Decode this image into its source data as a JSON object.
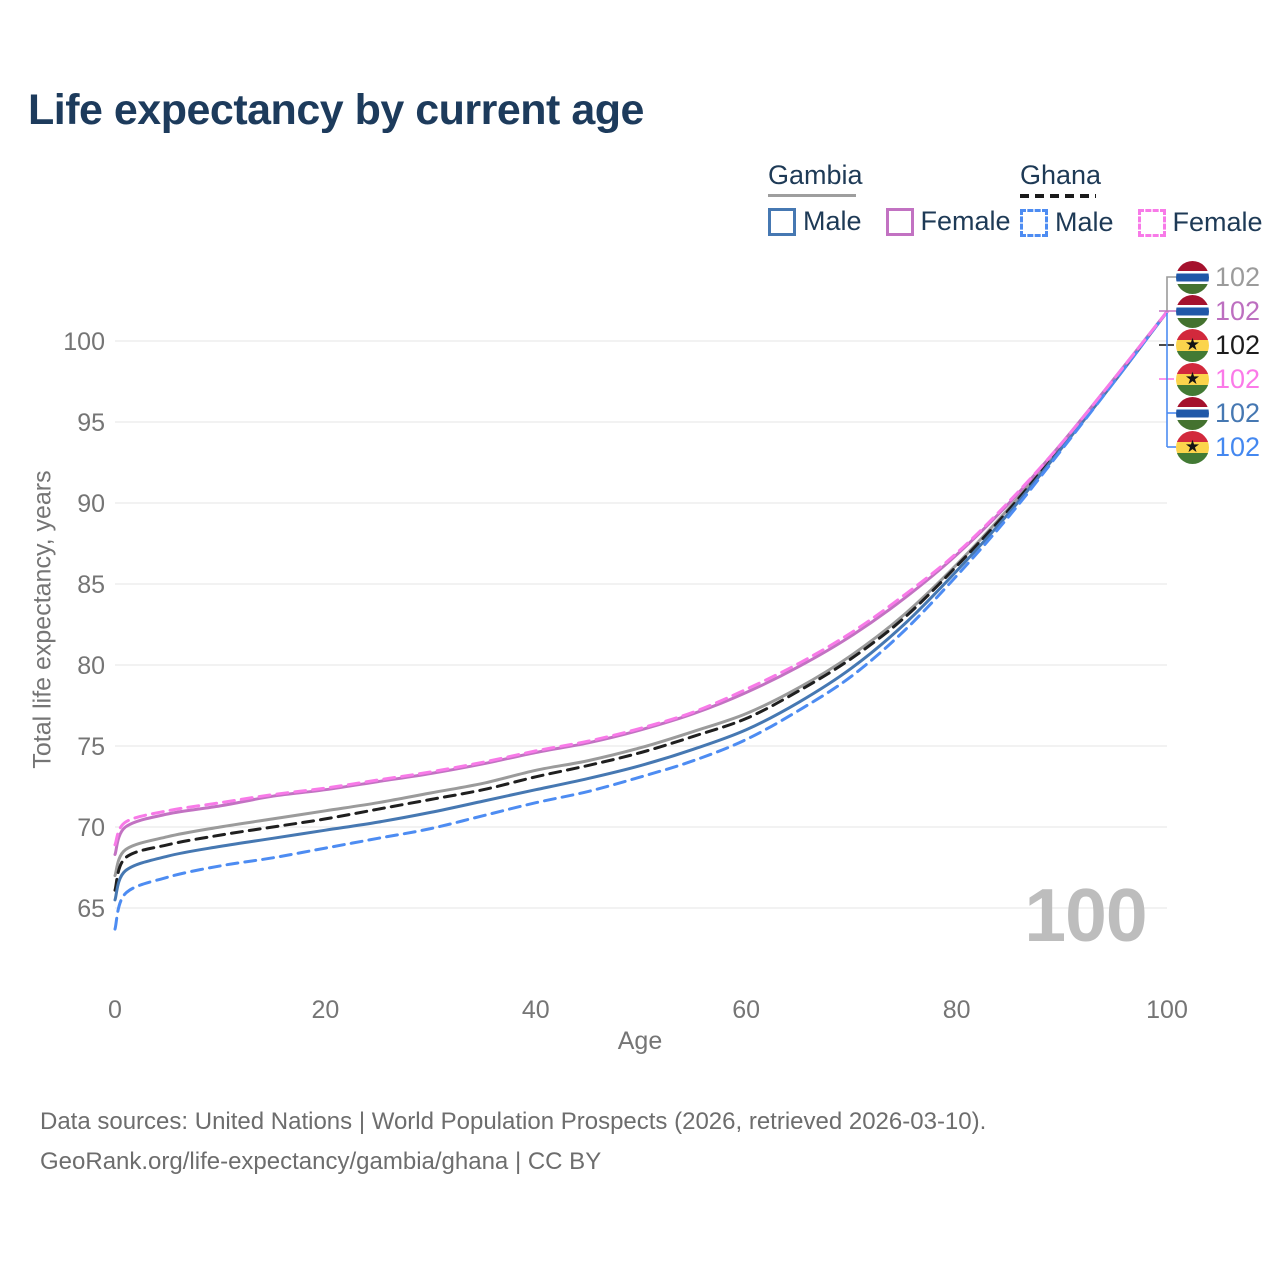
{
  "title": "Life expectancy by current age",
  "watermark_age": "100",
  "legend": {
    "groups": [
      {
        "title": "Gambia",
        "line_style": "solid",
        "underline_color": "#9e9e9e",
        "items": [
          {
            "label": "Male",
            "color": "#4678b2"
          },
          {
            "label": "Female",
            "color": "#c272c2"
          }
        ]
      },
      {
        "title": "Ghana",
        "line_style": "dashed",
        "underline_color": "#1a1a1a",
        "items": [
          {
            "label": "Male",
            "color": "#4d8cf2"
          },
          {
            "label": "Female",
            "color": "#f87ae8"
          }
        ]
      }
    ]
  },
  "footer": {
    "line1": "Data sources: United Nations | World Population Prospects (2026, retrieved 2026-03-10).",
    "line2": "GeoRank.org/life-expectancy/gambia/ghana | CC BY"
  },
  "colors": {
    "title_text": "#1d3b5c",
    "legend_text": "#1e3a56",
    "axis_text": "#757575",
    "grid_line": "#e9e9e9",
    "watermark": "#bdbdbd",
    "footer_text": "#6d6d6d"
  },
  "chart_data": {
    "type": "line",
    "title": "Life expectancy by current age",
    "xlabel": "Age",
    "ylabel": "Total life expectancy, years",
    "x_ticks": [
      0,
      20,
      40,
      60,
      80,
      100
    ],
    "y_ticks": [
      65,
      70,
      75,
      80,
      85,
      90,
      95,
      100
    ],
    "xlim": [
      0,
      100
    ],
    "ylim": [
      63,
      103
    ],
    "grid": "horizontal gridlines only",
    "legend_position": "top-right",
    "ages": [
      0,
      1,
      5,
      10,
      15,
      20,
      25,
      30,
      35,
      40,
      45,
      50,
      55,
      60,
      65,
      70,
      75,
      80,
      85,
      90,
      95,
      100
    ],
    "series": [
      {
        "name": "Gambia Total",
        "country": "Gambia",
        "sex": "Total",
        "color": "#9b9b9b",
        "dashed": false,
        "values": [
          67.0,
          68.6,
          69.4,
          70.0,
          70.5,
          71.0,
          71.5,
          72.1,
          72.7,
          73.5,
          74.1,
          74.9,
          75.9,
          77.0,
          78.6,
          80.6,
          83.1,
          86.2,
          89.7,
          93.5,
          97.6,
          101.8
        ]
      },
      {
        "name": "Ghana Total",
        "country": "Ghana",
        "sex": "Total",
        "color": "#1f1f1f",
        "dashed": true,
        "values": [
          66.1,
          68.1,
          68.9,
          69.5,
          70.0,
          70.5,
          71.1,
          71.7,
          72.3,
          73.1,
          73.8,
          74.6,
          75.6,
          76.7,
          78.4,
          80.4,
          82.9,
          86.1,
          89.6,
          93.5,
          97.6,
          101.8
        ]
      },
      {
        "name": "Gambia Male",
        "country": "Gambia",
        "sex": "Male",
        "color": "#4678b2",
        "dashed": false,
        "values": [
          65.5,
          67.3,
          68.2,
          68.8,
          69.3,
          69.8,
          70.3,
          70.9,
          71.6,
          72.3,
          73.0,
          73.8,
          74.8,
          76.0,
          77.7,
          79.8,
          82.5,
          85.8,
          89.4,
          93.4,
          97.5,
          101.8
        ]
      },
      {
        "name": "Gambia Female",
        "country": "Gambia",
        "sex": "Female",
        "color": "#c272c2",
        "dashed": false,
        "values": [
          68.3,
          70.0,
          70.8,
          71.3,
          71.9,
          72.3,
          72.8,
          73.3,
          73.9,
          74.6,
          75.2,
          76.0,
          77.0,
          78.3,
          79.9,
          81.8,
          84.1,
          86.8,
          90.0,
          93.7,
          97.7,
          101.8
        ]
      },
      {
        "name": "Ghana Male",
        "country": "Ghana",
        "sex": "Male",
        "color": "#4d8cf2",
        "dashed": true,
        "values": [
          63.7,
          65.9,
          66.9,
          67.6,
          68.1,
          68.7,
          69.3,
          69.9,
          70.7,
          71.5,
          72.2,
          73.1,
          74.1,
          75.4,
          77.2,
          79.3,
          82.1,
          85.5,
          89.2,
          93.3,
          97.5,
          101.8
        ]
      },
      {
        "name": "Ghana Female",
        "country": "Ghana",
        "sex": "Female",
        "color": "#f87ae8",
        "dashed": true,
        "values": [
          68.9,
          70.3,
          71.0,
          71.5,
          72.0,
          72.4,
          72.9,
          73.4,
          74.0,
          74.7,
          75.3,
          76.1,
          77.1,
          78.5,
          80.1,
          82.0,
          84.3,
          86.9,
          90.1,
          93.7,
          97.7,
          101.8
        ]
      }
    ],
    "end_labels": [
      {
        "series": "Gambia Total",
        "flag": "gambia",
        "value": "102",
        "color": "#9b9b9b"
      },
      {
        "series": "Gambia Female",
        "flag": "gambia",
        "value": "102",
        "color": "#bd6fc0"
      },
      {
        "series": "Ghana Total",
        "flag": "ghana",
        "value": "102",
        "color": "#1c1c1c"
      },
      {
        "series": "Ghana Female",
        "flag": "ghana",
        "value": "102",
        "color": "#fb7ae8"
      },
      {
        "series": "Gambia Male",
        "flag": "gambia",
        "value": "102",
        "color": "#4678b2"
      },
      {
        "series": "Ghana Male",
        "flag": "ghana",
        "value": "102",
        "color": "#4488f0"
      }
    ]
  }
}
